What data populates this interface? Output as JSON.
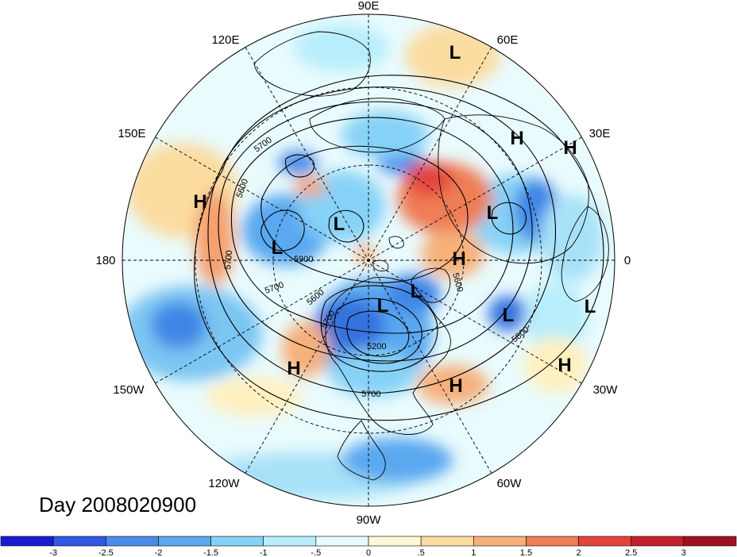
{
  "map": {
    "type": "polar-stereographic-north",
    "field_shading": "anomaly",
    "longitude_labels": [
      {
        "text": "90E",
        "lon": 90
      },
      {
        "text": "60E",
        "lon": 60
      },
      {
        "text": "30E",
        "lon": 30
      },
      {
        "text": "0",
        "lon": 0
      },
      {
        "text": "30W",
        "lon": -30
      },
      {
        "text": "60W",
        "lon": -60
      },
      {
        "text": "90W",
        "lon": -90
      },
      {
        "text": "120W",
        "lon": -120
      },
      {
        "text": "150W",
        "lon": -150
      },
      {
        "text": "180",
        "lon": 180
      },
      {
        "text": "150E",
        "lon": 150
      },
      {
        "text": "120E",
        "lon": 120
      }
    ],
    "pressure_centers": [
      {
        "type": "L",
        "label": "L"
      },
      {
        "type": "H",
        "label": "H"
      },
      {
        "type": "H",
        "label": "H"
      },
      {
        "type": "H",
        "label": "H"
      },
      {
        "type": "L",
        "label": "L"
      },
      {
        "type": "L",
        "label": "L"
      },
      {
        "type": "L",
        "label": "L"
      },
      {
        "type": "H",
        "label": "H"
      },
      {
        "type": "L",
        "label": "L"
      },
      {
        "type": "L",
        "label": "L"
      },
      {
        "type": "L",
        "label": "L"
      },
      {
        "type": "L",
        "label": "L"
      },
      {
        "type": "H",
        "label": "H"
      },
      {
        "type": "H",
        "label": "H"
      },
      {
        "type": "H",
        "label": "H"
      }
    ],
    "contour_labels": [
      "5700",
      "5600",
      "5200",
      "5700",
      "5600",
      "5800",
      "5700",
      "5700",
      "5600",
      "5700",
      "5900"
    ],
    "date_label": "Day 2008020900"
  },
  "colorbar": {
    "ticks": [
      "-3",
      "-2.5",
      "-2",
      "-1.5",
      "-1",
      "-.5",
      "0",
      ".5",
      "1",
      "1.5",
      "2",
      "2.5",
      "3"
    ],
    "colors": [
      "#1a1ad0",
      "#2f57e3",
      "#4a8be9",
      "#5aa8f0",
      "#86d2f7",
      "#b8eefb",
      "#e7fbfd",
      "#fff8d8",
      "#fbdca0",
      "#f6b07a",
      "#ef7d55",
      "#e3453e",
      "#c4202c",
      "#a01020"
    ]
  }
}
